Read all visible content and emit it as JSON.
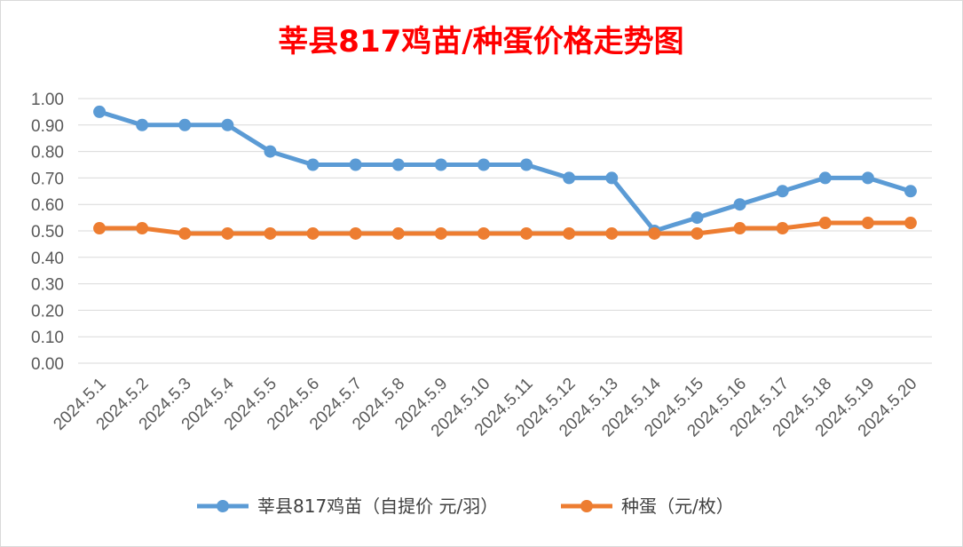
{
  "chart_data": {
    "type": "line",
    "title": "莘县817鸡苗/种蛋价格走势图",
    "categories": [
      "2024.5.1",
      "2024.5.2",
      "2024.5.3",
      "2024.5.4",
      "2024.5.5",
      "2024.5.6",
      "2024.5.7",
      "2024.5.8",
      "2024.5.9",
      "2024.5.10",
      "2024.5.11",
      "2024.5.12",
      "2024.5.13",
      "2024.5.14",
      "2024.5.15",
      "2024.5.16",
      "2024.5.17",
      "2024.5.18",
      "2024.5.19",
      "2024.5.20"
    ],
    "series": [
      {
        "name": "莘县817鸡苗（自提价 元/羽）",
        "color": "#5B9BD5",
        "values": [
          0.95,
          0.9,
          0.9,
          0.9,
          0.8,
          0.75,
          0.75,
          0.75,
          0.75,
          0.75,
          0.75,
          0.7,
          0.7,
          0.5,
          0.55,
          0.6,
          0.65,
          0.7,
          0.7,
          0.65
        ]
      },
      {
        "name": "种蛋（元/枚）",
        "color": "#ED7D31",
        "values": [
          0.51,
          0.51,
          0.49,
          0.49,
          0.49,
          0.49,
          0.49,
          0.49,
          0.49,
          0.49,
          0.49,
          0.49,
          0.49,
          0.49,
          0.49,
          0.51,
          0.51,
          0.53,
          0.53,
          0.53
        ]
      }
    ],
    "ylim": [
      0,
      1.0
    ],
    "y_ticks": [
      "0.00",
      "0.10",
      "0.20",
      "0.30",
      "0.40",
      "0.50",
      "0.60",
      "0.70",
      "0.80",
      "0.90",
      "1.00"
    ],
    "grid": true,
    "legend": "bottom",
    "title_color": "#FF0000"
  }
}
